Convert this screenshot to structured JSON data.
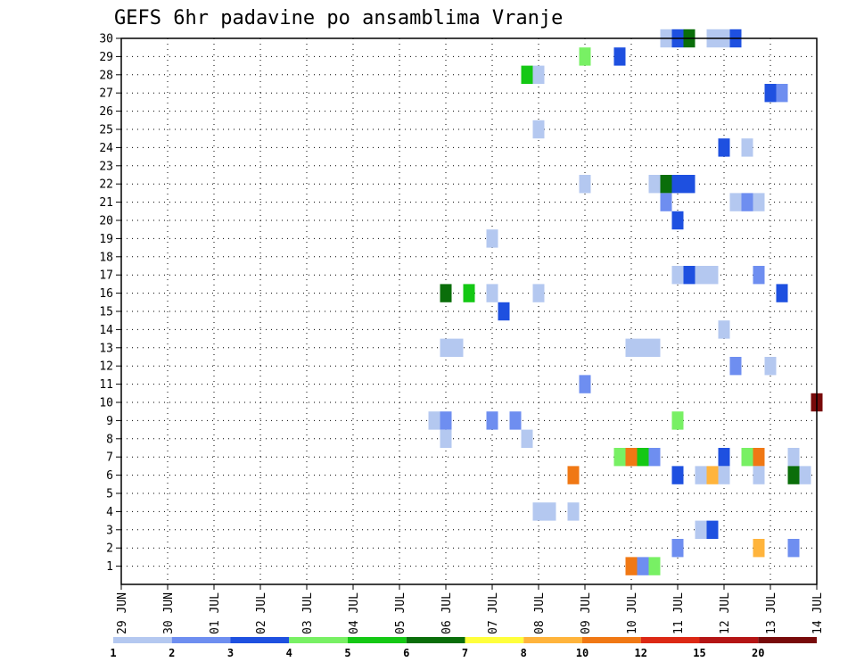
{
  "chart_data": {
    "type": "heatmap",
    "title": "GEFS 6hr padavine po ansamblima Vranje",
    "x_ticks": [
      "29 JUN",
      "30 JUN",
      "01 JUL",
      "02 JUL",
      "03 JUL",
      "04 JUL",
      "05 JUL",
      "06 JUL",
      "07 JUL",
      "08 JUL",
      "09 JUL",
      "10 JUL",
      "11 JUL",
      "12 JUL",
      "13 JUL",
      "14 JUL"
    ],
    "y_ticks": [
      "1",
      "2",
      "3",
      "4",
      "5",
      "6",
      "7",
      "8",
      "9",
      "10",
      "11",
      "12",
      "13",
      "14",
      "15",
      "16",
      "17",
      "18",
      "19",
      "20",
      "21",
      "22",
      "23",
      "24",
      "25",
      "26",
      "27",
      "28",
      "29",
      "30"
    ],
    "xlim_days": [
      0,
      15
    ],
    "ylim": [
      0,
      30
    ],
    "grid": true,
    "legend": {
      "placement": "bottom",
      "colors": [
        "#b4c8f0",
        "#6e8ef0",
        "#1e50e0",
        "#78f064",
        "#14c814",
        "#0a6e0a",
        "#ffff3c",
        "#ffb43c",
        "#f07814",
        "#dc2814",
        "#b41414",
        "#780a0a"
      ],
      "labels": [
        "1",
        "2",
        "3",
        "4",
        "5",
        "6",
        "7",
        "8",
        "10",
        "12",
        "15",
        "20"
      ]
    },
    "cells": [
      {
        "day": 11.75,
        "member": 30,
        "level": 1
      },
      {
        "day": 12.0,
        "member": 30,
        "level": 3
      },
      {
        "day": 12.25,
        "member": 30,
        "level": 6
      },
      {
        "day": 12.75,
        "member": 30,
        "level": 1
      },
      {
        "day": 13.0,
        "member": 30,
        "level": 1
      },
      {
        "day": 13.25,
        "member": 30,
        "level": 3
      },
      {
        "day": 10.0,
        "member": 29,
        "level": 4
      },
      {
        "day": 10.75,
        "member": 29,
        "level": 3
      },
      {
        "day": 8.75,
        "member": 28,
        "level": 5
      },
      {
        "day": 9.0,
        "member": 28,
        "level": 1
      },
      {
        "day": 14.0,
        "member": 27,
        "level": 3
      },
      {
        "day": 14.25,
        "member": 27,
        "level": 2
      },
      {
        "day": 9.0,
        "member": 25,
        "level": 1
      },
      {
        "day": 13.0,
        "member": 24,
        "level": 3
      },
      {
        "day": 13.5,
        "member": 24,
        "level": 1
      },
      {
        "day": 10.0,
        "member": 22,
        "level": 1
      },
      {
        "day": 11.5,
        "member": 22,
        "level": 1
      },
      {
        "day": 11.75,
        "member": 22,
        "level": 6
      },
      {
        "day": 12.0,
        "member": 22,
        "level": 3
      },
      {
        "day": 12.25,
        "member": 22,
        "level": 3
      },
      {
        "day": 11.75,
        "member": 21,
        "level": 2
      },
      {
        "day": 13.25,
        "member": 21,
        "level": 1
      },
      {
        "day": 13.5,
        "member": 21,
        "level": 2
      },
      {
        "day": 13.75,
        "member": 21,
        "level": 1
      },
      {
        "day": 12.0,
        "member": 20,
        "level": 3
      },
      {
        "day": 8.0,
        "member": 19,
        "level": 1
      },
      {
        "day": 12.0,
        "member": 17,
        "level": 1
      },
      {
        "day": 12.25,
        "member": 17,
        "level": 3
      },
      {
        "day": 12.5,
        "member": 17,
        "level": 1
      },
      {
        "day": 12.75,
        "member": 17,
        "level": 1
      },
      {
        "day": 13.75,
        "member": 17,
        "level": 2
      },
      {
        "day": 7.0,
        "member": 16,
        "level": 6
      },
      {
        "day": 7.5,
        "member": 16,
        "level": 5
      },
      {
        "day": 8.0,
        "member": 16,
        "level": 1
      },
      {
        "day": 9.0,
        "member": 16,
        "level": 1
      },
      {
        "day": 14.25,
        "member": 16,
        "level": 3
      },
      {
        "day": 8.25,
        "member": 15,
        "level": 3
      },
      {
        "day": 13.0,
        "member": 14,
        "level": 1
      },
      {
        "day": 7.0,
        "member": 13,
        "level": 1
      },
      {
        "day": 7.25,
        "member": 13,
        "level": 1
      },
      {
        "day": 11.0,
        "member": 13,
        "level": 1
      },
      {
        "day": 11.25,
        "member": 13,
        "level": 1
      },
      {
        "day": 11.5,
        "member": 13,
        "level": 1
      },
      {
        "day": 13.25,
        "member": 12,
        "level": 2
      },
      {
        "day": 14.0,
        "member": 12,
        "level": 1
      },
      {
        "day": 10.0,
        "member": 11,
        "level": 2
      },
      {
        "day": 15.0,
        "member": 10,
        "level": 12
      },
      {
        "day": 6.75,
        "member": 9,
        "level": 1
      },
      {
        "day": 7.0,
        "member": 9,
        "level": 2
      },
      {
        "day": 8.0,
        "member": 9,
        "level": 2
      },
      {
        "day": 8.5,
        "member": 9,
        "level": 2
      },
      {
        "day": 12.0,
        "member": 9,
        "level": 4
      },
      {
        "day": 7.0,
        "member": 8,
        "level": 1
      },
      {
        "day": 8.75,
        "member": 8,
        "level": 1
      },
      {
        "day": 10.75,
        "member": 7,
        "level": 4
      },
      {
        "day": 11.0,
        "member": 7,
        "level": 9
      },
      {
        "day": 11.25,
        "member": 7,
        "level": 5
      },
      {
        "day": 11.5,
        "member": 7,
        "level": 2
      },
      {
        "day": 13.0,
        "member": 7,
        "level": 3
      },
      {
        "day": 13.5,
        "member": 7,
        "level": 4
      },
      {
        "day": 13.75,
        "member": 7,
        "level": 9
      },
      {
        "day": 14.5,
        "member": 7,
        "level": 1
      },
      {
        "day": 9.75,
        "member": 6,
        "level": 9
      },
      {
        "day": 12.0,
        "member": 6,
        "level": 3
      },
      {
        "day": 12.5,
        "member": 6,
        "level": 1
      },
      {
        "day": 12.75,
        "member": 6,
        "level": 8
      },
      {
        "day": 13.0,
        "member": 6,
        "level": 1
      },
      {
        "day": 13.75,
        "member": 6,
        "level": 1
      },
      {
        "day": 14.5,
        "member": 6,
        "level": 6
      },
      {
        "day": 14.75,
        "member": 6,
        "level": 1
      },
      {
        "day": 9.0,
        "member": 4,
        "level": 1
      },
      {
        "day": 9.25,
        "member": 4,
        "level": 1
      },
      {
        "day": 9.75,
        "member": 4,
        "level": 1
      },
      {
        "day": 12.5,
        "member": 3,
        "level": 1
      },
      {
        "day": 12.75,
        "member": 3,
        "level": 3
      },
      {
        "day": 12.0,
        "member": 2,
        "level": 2
      },
      {
        "day": 13.75,
        "member": 2,
        "level": 8
      },
      {
        "day": 14.5,
        "member": 2,
        "level": 2
      },
      {
        "day": 11.0,
        "member": 1,
        "level": 9
      },
      {
        "day": 11.25,
        "member": 1,
        "level": 2
      },
      {
        "day": 11.5,
        "member": 1,
        "level": 4
      }
    ]
  }
}
